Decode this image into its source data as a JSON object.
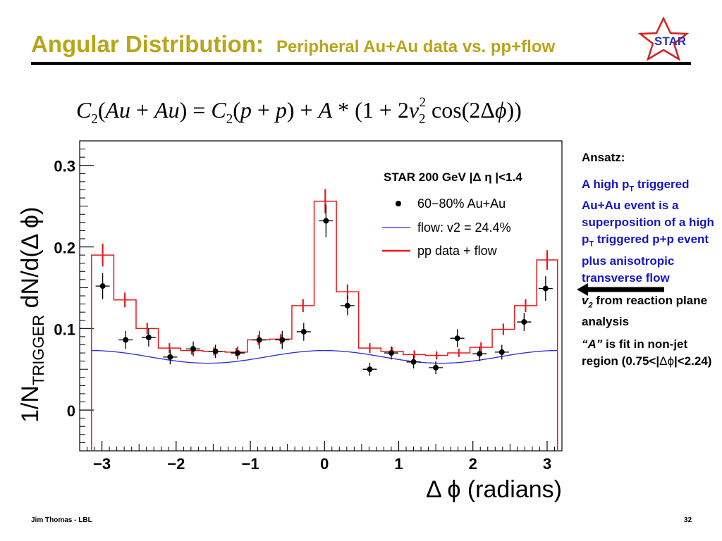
{
  "slide": {
    "title_main": "Angular Distribution:",
    "title_sub": "Peripheral Au+Au data vs. pp+flow",
    "logo_text": "STAR",
    "footer_left": "Jim Thomas - LBL",
    "footer_right": "32",
    "colors": {
      "title": "#b7a51a",
      "side_text": "#1515c8",
      "logo_star": "#d62020",
      "logo_text": "#2a34b8"
    }
  },
  "sidebar": {
    "heading": "Ansatz:",
    "para1": [
      "A high p",
      "T",
      " triggered Au+Au event is  a superposition of a high p",
      "T",
      " triggered p+p event plus anisotropic transverse flow"
    ],
    "para2": [
      "v",
      "2",
      " from reaction plane analysis"
    ],
    "para3": [
      "“A”",
      " is fit in    non-jet region (0.75<|",
      "Δϕ",
      "|<2.24)"
    ]
  },
  "chart_data": {
    "type": "line",
    "xlabel": "Δ ϕ (radians)",
    "ylabel": "1/N",
    "ylabel_sub": "TRIGGER",
    "ylabel_rest": " dN/d(Δ ϕ)",
    "xlim": [
      -3.3,
      3.2
    ],
    "ylim": [
      -0.05,
      0.33
    ],
    "xticks": [
      -3,
      -2,
      -1,
      0,
      1,
      2,
      3
    ],
    "yticks": [
      0,
      0.1,
      0.2,
      0.3
    ],
    "ytick_labels": [
      "0",
      "0.1",
      "0.2",
      "0.3"
    ],
    "legend": {
      "title": "STAR 200 GeV |Δ η |<1.4",
      "placement": "top-right",
      "entries": [
        "60−80% Au+Au",
        "flow: v2 = 24.4%",
        "pp data + flow"
      ]
    },
    "series": [
      {
        "name": "60−80% Au+Au",
        "kind": "points",
        "color": "#000000",
        "x": [
          -2.99,
          -2.68,
          -2.37,
          -2.08,
          -1.77,
          -1.47,
          -1.17,
          -0.88,
          -0.57,
          -0.28,
          0.02,
          0.31,
          0.61,
          0.9,
          1.2,
          1.5,
          1.79,
          2.09,
          2.39,
          2.69,
          2.98
        ],
        "y": [
          0.152,
          0.086,
          0.089,
          0.065,
          0.075,
          0.072,
          0.07,
          0.086,
          0.086,
          0.096,
          0.232,
          0.128,
          0.05,
          0.07,
          0.059,
          0.052,
          0.088,
          0.069,
          0.071,
          0.108,
          0.149
        ],
        "yerr": [
          0.016,
          0.011,
          0.011,
          0.009,
          0.009,
          0.008,
          0.008,
          0.011,
          0.011,
          0.011,
          0.02,
          0.012,
          0.008,
          0.008,
          0.008,
          0.008,
          0.011,
          0.009,
          0.009,
          0.011,
          0.015
        ]
      },
      {
        "name": "flow: v2 = 24.4%",
        "kind": "curve",
        "color": "#2a2ad8",
        "A": 0.0652,
        "v2": 0.244
      },
      {
        "name": "pp data + flow",
        "kind": "histogram",
        "color": "#e81a1a",
        "edges": [
          -3.14,
          -2.84,
          -2.54,
          -2.24,
          -1.94,
          -1.64,
          -1.34,
          -1.04,
          -0.74,
          -0.44,
          -0.14,
          0.16,
          0.46,
          0.76,
          1.06,
          1.36,
          1.66,
          1.96,
          2.26,
          2.56,
          2.86,
          3.14
        ],
        "y": [
          0.19,
          0.135,
          0.1,
          0.076,
          0.073,
          0.072,
          0.071,
          0.086,
          0.087,
          0.128,
          0.256,
          0.145,
          0.076,
          0.072,
          0.068,
          0.067,
          0.07,
          0.077,
          0.099,
          0.128,
          0.184
        ],
        "yerr": [
          0.014,
          0.009,
          0.007,
          0.006,
          0.005,
          0.005,
          0.005,
          0.006,
          0.006,
          0.008,
          0.015,
          0.009,
          0.006,
          0.005,
          0.005,
          0.005,
          0.005,
          0.006,
          0.007,
          0.008,
          0.012
        ]
      }
    ]
  }
}
